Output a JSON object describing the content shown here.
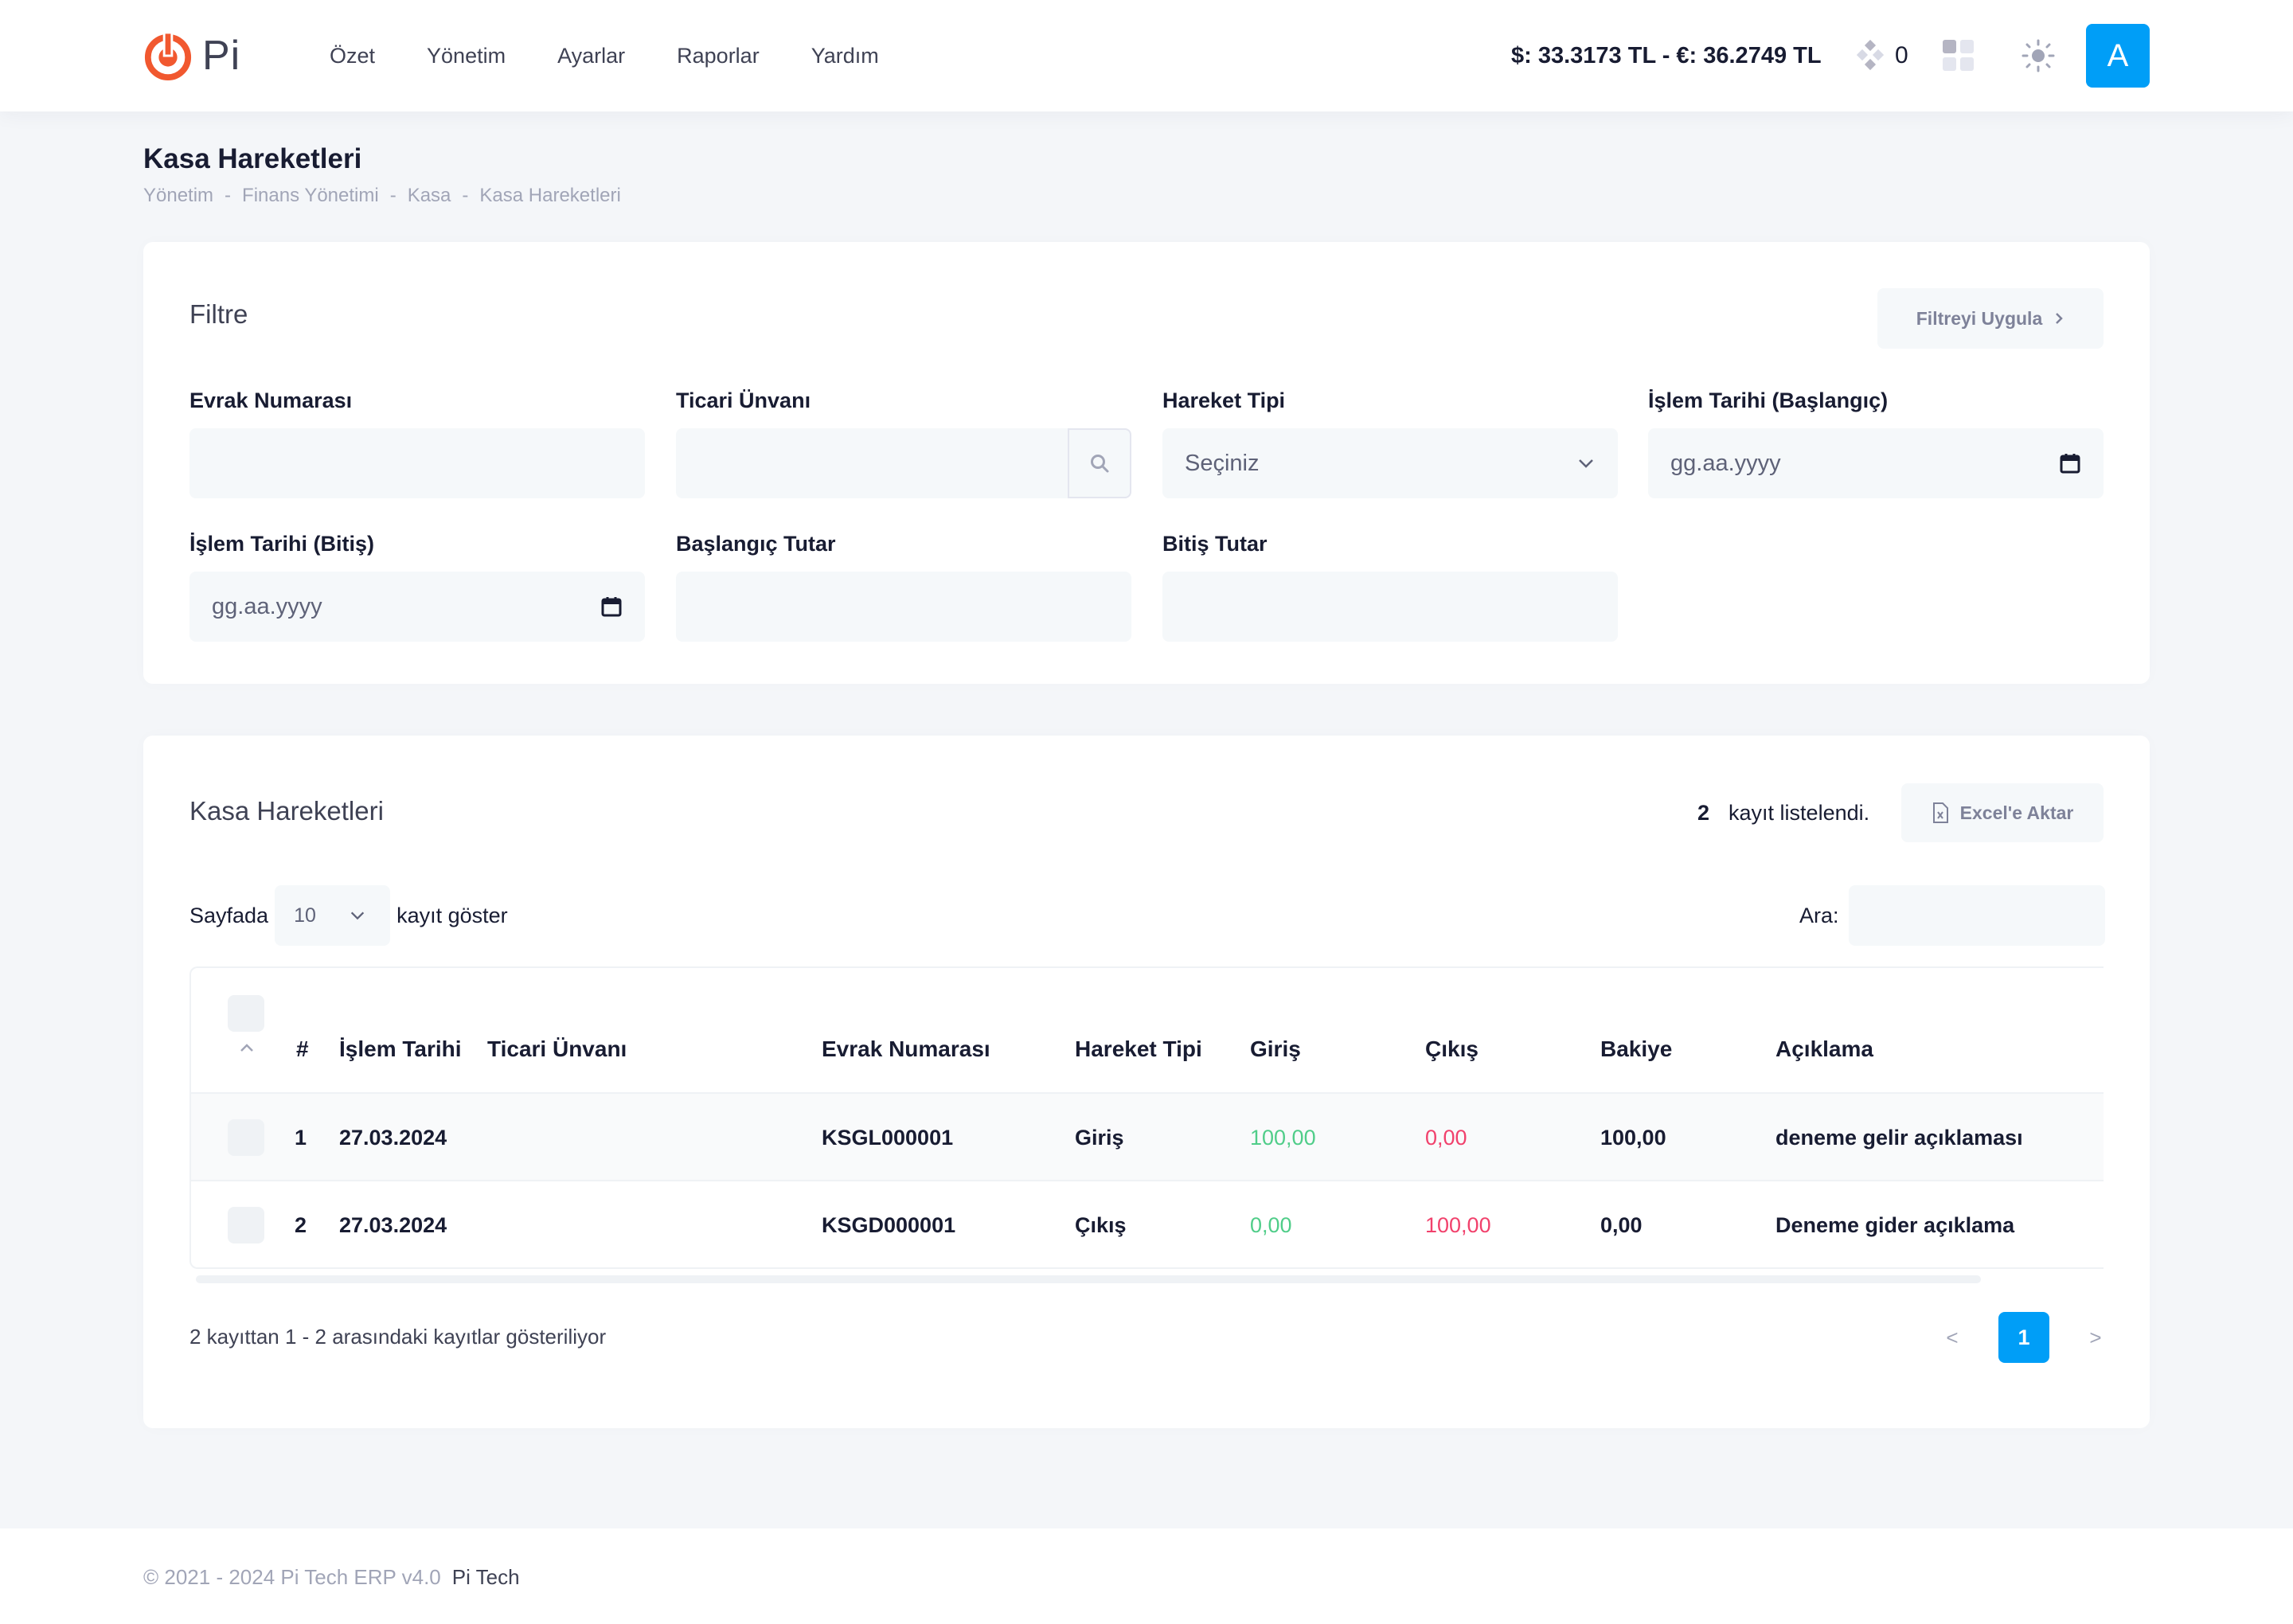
{
  "header": {
    "logo_text": "Pi",
    "nav": [
      "Özet",
      "Yönetim",
      "Ayarlar",
      "Raporlar",
      "Yardım"
    ],
    "rates": "$: 33.3173 TL - €: 36.2749 TL",
    "notification_count": "0",
    "avatar_letter": "A",
    "colors": {
      "accent": "#009ef7",
      "logo": "#f1582f"
    }
  },
  "page": {
    "title": "Kasa Hareketleri",
    "breadcrumb": [
      "Yönetim",
      "Finans Yönetimi",
      "Kasa",
      "Kasa Hareketleri"
    ],
    "breadcrumb_sep": "-"
  },
  "filter": {
    "title": "Filtre",
    "apply_label": "Filtreyi Uygula",
    "fields": {
      "evrak_no": {
        "label": "Evrak Numarası",
        "value": ""
      },
      "ticari_unvan": {
        "label": "Ticari Ünvanı",
        "value": ""
      },
      "hareket_tipi": {
        "label": "Hareket Tipi",
        "value": "Seçiniz"
      },
      "tarih_baslangic": {
        "label": "İşlem Tarihi (Başlangıç)",
        "value": "gg.aa.yyyy"
      },
      "tarih_bitis": {
        "label": "İşlem Tarihi (Bitiş)",
        "value": "gg.aa.yyyy"
      },
      "baslangic_tutar": {
        "label": "Başlangıç Tutar",
        "value": ""
      },
      "bitis_tutar": {
        "label": "Bitiş Tutar",
        "value": ""
      }
    }
  },
  "list": {
    "title": "Kasa Hareketleri",
    "record_count": "2",
    "record_count_suffix": "kayıt listelendi.",
    "excel_label": "Excel'e Aktar",
    "length_prefix": "Sayfada",
    "length_value": "10",
    "length_suffix": "kayıt göster",
    "search_label": "Ara:",
    "columns": [
      "#",
      "İşlem Tarihi",
      "Ticari Ünvanı",
      "Evrak Numarası",
      "Hareket Tipi",
      "Giriş",
      "Çıkış",
      "Bakiye",
      "Açıklama"
    ],
    "rows": [
      {
        "no": "1",
        "tarih": "27.03.2024",
        "unvan": "",
        "evrak": "KSGL000001",
        "tip": "Giriş",
        "giris": "100,00",
        "cikis": "0,00",
        "bakiye": "100,00",
        "aciklama": "deneme gelir açıklaması"
      },
      {
        "no": "2",
        "tarih": "27.03.2024",
        "unvan": "",
        "evrak": "KSGD000001",
        "tip": "Çıkış",
        "giris": "0,00",
        "cikis": "100,00",
        "bakiye": "0,00",
        "aciklama": "Deneme gider açıklama"
      }
    ],
    "info": "2 kayıttan 1 - 2 arasındaki kayıtlar gösteriliyor",
    "pager": {
      "prev": "<",
      "current": "1",
      "next": ">"
    }
  },
  "footer": {
    "copyright": "© 2021 - 2024 Pi Tech ERP v4.0",
    "brand": "Pi Tech"
  }
}
